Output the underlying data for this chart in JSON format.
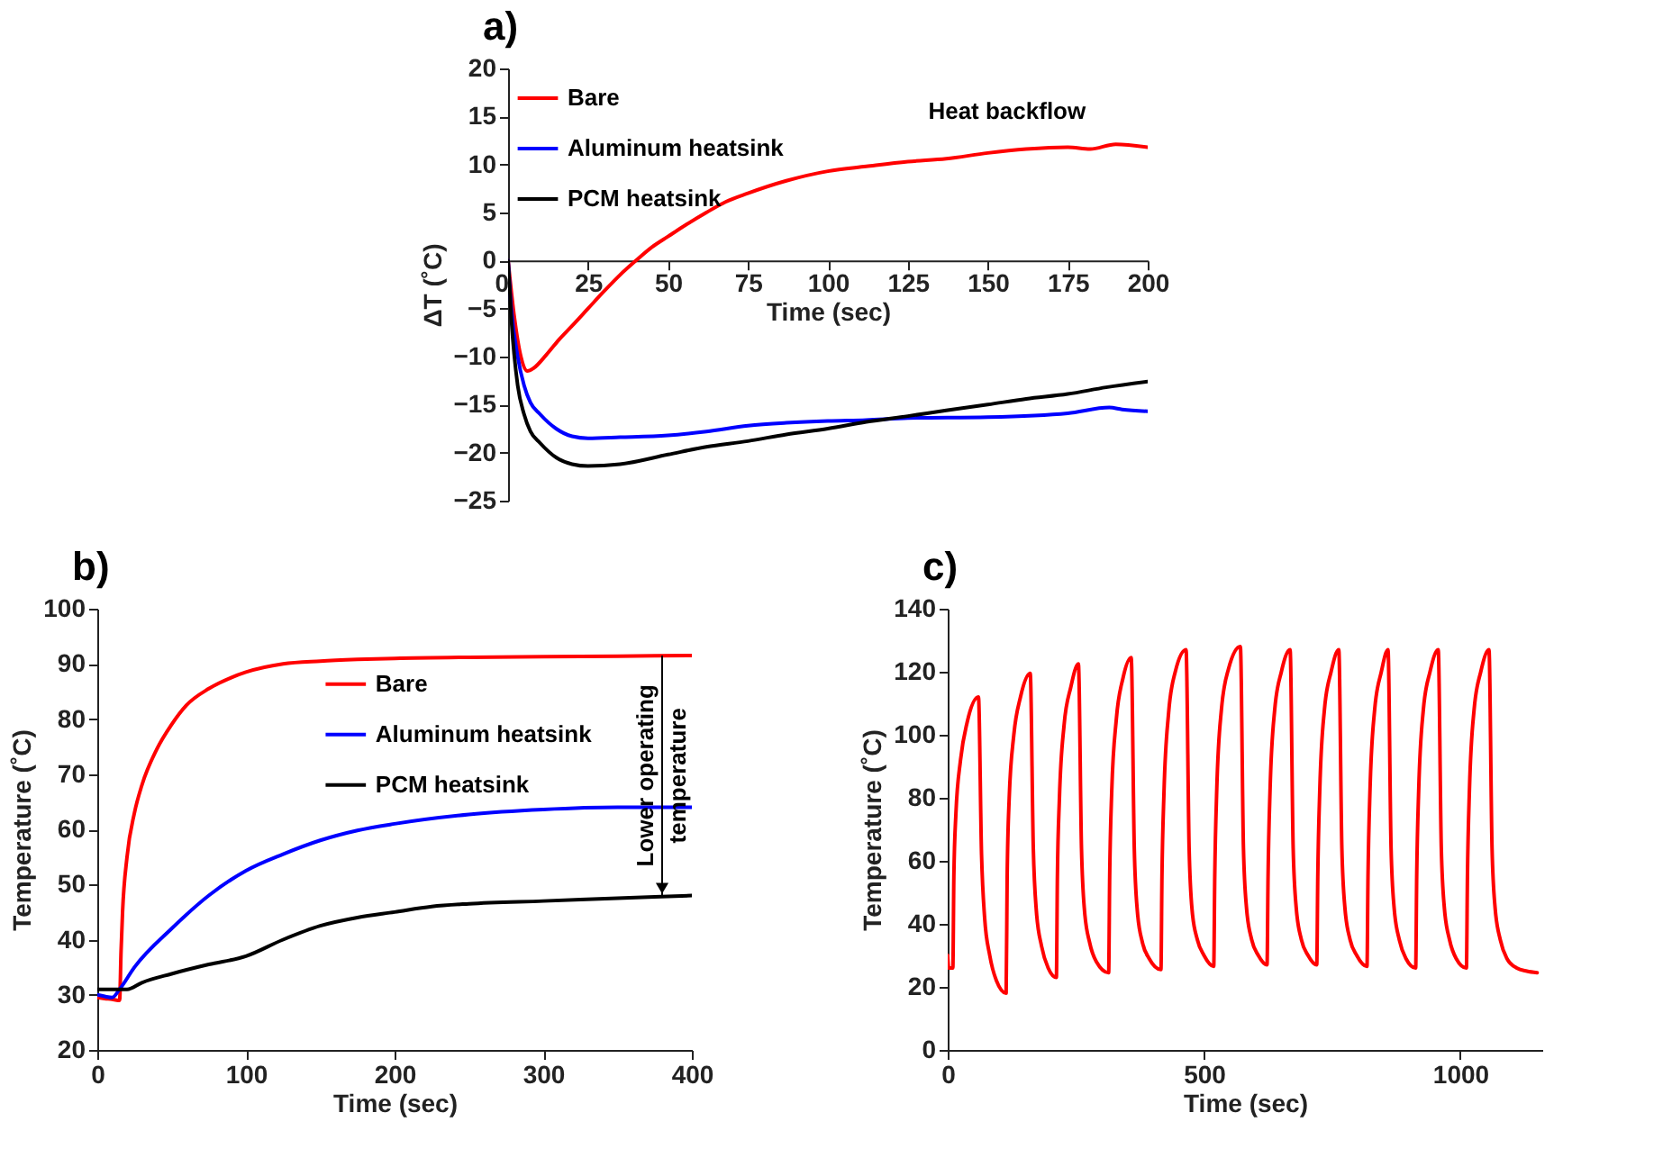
{
  "chart_data": [
    {
      "type": "line",
      "title": "a)",
      "xlabel": "Time (sec)",
      "ylabel": "ΔT (˚C)",
      "xlim": [
        0,
        200
      ],
      "ylim": [
        -25,
        20
      ],
      "xticks": [
        0,
        25,
        50,
        75,
        100,
        125,
        150,
        175,
        200
      ],
      "yticks": [
        -25,
        -20,
        -15,
        -10,
        -5,
        0,
        5,
        10,
        15,
        20
      ],
      "grid": false,
      "legend": "top left",
      "annotations": [
        "Heat backflow"
      ],
      "series": [
        {
          "name": "Bare",
          "color": "#ff0000",
          "x": [
            0,
            2,
            4,
            6,
            8,
            12,
            16,
            20,
            25,
            30,
            35,
            40,
            45,
            50,
            56,
            62,
            68,
            75,
            87,
            100,
            112,
            125,
            137,
            150,
            162,
            175,
            182,
            190,
            200
          ],
          "values": [
            0,
            -6,
            -10,
            -11.5,
            -11.2,
            -9.8,
            -8.2,
            -6.8,
            -5,
            -3.2,
            -1.5,
            0,
            1.4,
            2.5,
            3.8,
            5,
            6.1,
            7,
            8.3,
            9.3,
            9.8,
            10.3,
            10.6,
            11.2,
            11.6,
            11.8,
            11.6,
            12.1,
            11.8
          ]
        },
        {
          "name": "Aluminum heatsink",
          "color": "#0000ff",
          "x": [
            0,
            1,
            3,
            5,
            7,
            10,
            15,
            20,
            25,
            35,
            50,
            62,
            75,
            87,
            100,
            112,
            125,
            150,
            175,
            188,
            192,
            200
          ],
          "values": [
            0,
            -5,
            -10,
            -13,
            -14.8,
            -16,
            -17.5,
            -18.3,
            -18.5,
            -18.4,
            -18.2,
            -17.8,
            -17.2,
            -16.9,
            -16.7,
            -16.6,
            -16.4,
            -16.3,
            -15.9,
            -15.3,
            -15.5,
            -15.7
          ]
        },
        {
          "name": "PCM heatsink",
          "color": "#000000",
          "x": [
            0,
            1,
            3,
            5,
            7,
            10,
            15,
            20,
            25,
            35,
            50,
            62,
            75,
            87,
            100,
            112,
            125,
            137,
            150,
            162,
            175,
            187,
            200
          ],
          "values": [
            0,
            -6,
            -13,
            -16,
            -17.8,
            -19,
            -20.5,
            -21.2,
            -21.4,
            -21.2,
            -20.2,
            -19.4,
            -18.8,
            -18.1,
            -17.5,
            -16.8,
            -16.2,
            -15.6,
            -15,
            -14.4,
            -13.9,
            -13.2,
            -12.6
          ]
        }
      ]
    },
    {
      "type": "line",
      "title": "b)",
      "xlabel": "Time (sec)",
      "ylabel": "Temperature (˚C)",
      "xlim": [
        0,
        400
      ],
      "ylim": [
        20,
        100
      ],
      "xticks": [
        0,
        100,
        200,
        300,
        400
      ],
      "yticks": [
        20,
        30,
        40,
        50,
        60,
        70,
        80,
        90,
        100
      ],
      "grid": false,
      "legend": "top right",
      "annotations": [
        {
          "text": "Lower operating temperature",
          "x": 380,
          "y": 48
        }
      ],
      "series": [
        {
          "name": "Bare",
          "color": "#ff0000",
          "x": [
            0,
            5,
            10,
            14,
            15,
            16,
            17,
            20,
            25,
            30,
            40,
            50,
            60,
            75,
            90,
            100,
            125,
            150,
            175,
            200,
            250,
            300,
            350,
            400
          ],
          "values": [
            29.5,
            29.3,
            29.2,
            29,
            29,
            38,
            45,
            55,
            63,
            68,
            74.5,
            79,
            82.5,
            85.5,
            87.5,
            88.5,
            90,
            90.5,
            90.8,
            91,
            91.2,
            91.3,
            91.4,
            91.5
          ]
        },
        {
          "name": "Aluminum heatsink",
          "color": "#0000ff",
          "x": [
            0,
            5,
            10,
            15,
            25,
            50,
            75,
            100,
            125,
            150,
            175,
            200,
            250,
            300,
            350,
            400
          ],
          "values": [
            30,
            29.7,
            29.5,
            31,
            35,
            42,
            48,
            52.5,
            55.5,
            58,
            59.8,
            61,
            62.7,
            63.6,
            64,
            64
          ]
        },
        {
          "name": "PCM heatsink",
          "color": "#000000",
          "x": [
            0,
            10,
            20,
            30,
            50,
            75,
            100,
            125,
            150,
            175,
            200,
            225,
            250,
            300,
            350,
            400
          ],
          "values": [
            31,
            31,
            31,
            32.2,
            33.8,
            35.5,
            37,
            40,
            42.5,
            44,
            45,
            46,
            46.5,
            47,
            47.5,
            48
          ]
        }
      ]
    },
    {
      "type": "line",
      "title": "c)",
      "xlabel": "Time (sec)",
      "ylabel": "Temperature (˚C)",
      "xlim": [
        0,
        1160
      ],
      "ylim": [
        0,
        140
      ],
      "xticks": [
        0,
        500,
        1000
      ],
      "yticks": [
        0,
        20,
        40,
        60,
        80,
        100,
        120,
        140
      ],
      "grid": false,
      "series": [
        {
          "color": "#ff0000",
          "x": [
            0,
            2,
            10,
            12,
            16,
            25,
            38,
            60,
            66,
            72,
            82,
            95,
            114,
            116,
            120,
            129,
            142,
            161,
            167,
            173,
            183,
            196,
            212,
            214,
            218,
            227,
            240,
            255,
            261,
            267,
            277,
            290,
            314,
            316,
            320,
            329,
            342,
            358,
            364,
            370,
            380,
            393,
            416,
            418,
            422,
            431,
            444,
            465,
            471,
            477,
            487,
            500,
            519,
            521,
            525,
            534,
            548,
            571,
            577,
            583,
            593,
            606,
            623,
            625,
            629,
            638,
            651,
            668,
            674,
            680,
            690,
            703,
            720,
            722,
            726,
            735,
            748,
            763,
            769,
            775,
            785,
            798,
            818,
            820,
            824,
            833,
            846,
            859,
            865,
            871,
            881,
            894,
            913,
            915,
            919,
            928,
            941,
            957,
            963,
            969,
            979,
            992,
            1012,
            1014,
            1018,
            1027,
            1040,
            1056,
            1062,
            1068,
            1078,
            1091,
            1110,
            1130,
            1150
          ],
          "values": [
            30,
            26,
            26,
            55,
            75,
            92,
            104,
            112,
            62,
            42,
            30,
            22,
            18,
            55,
            80,
            100,
            112,
            119.5,
            64,
            44,
            33,
            26,
            23,
            55,
            80,
            103,
            115,
            122.5,
            64,
            44,
            34,
            28,
            24.5,
            55,
            82,
            105,
            118,
            124.5,
            64,
            44,
            34,
            29,
            25.5,
            55,
            82,
            107,
            120,
            127,
            64,
            44,
            35,
            30,
            26.5,
            55,
            83,
            108,
            121,
            128,
            64,
            45,
            35,
            30,
            27,
            55,
            83,
            108,
            120,
            127,
            64,
            45,
            35,
            30,
            27,
            55,
            83,
            108,
            120,
            127,
            64,
            45,
            35,
            30,
            26.5,
            55,
            83,
            108,
            120,
            127,
            64,
            45,
            35,
            29,
            26,
            55,
            83,
            108,
            120,
            127,
            64,
            45,
            35,
            29,
            26,
            55,
            83,
            108,
            120,
            127,
            64,
            45,
            35,
            29,
            26,
            25,
            24.5
          ]
        }
      ]
    }
  ]
}
